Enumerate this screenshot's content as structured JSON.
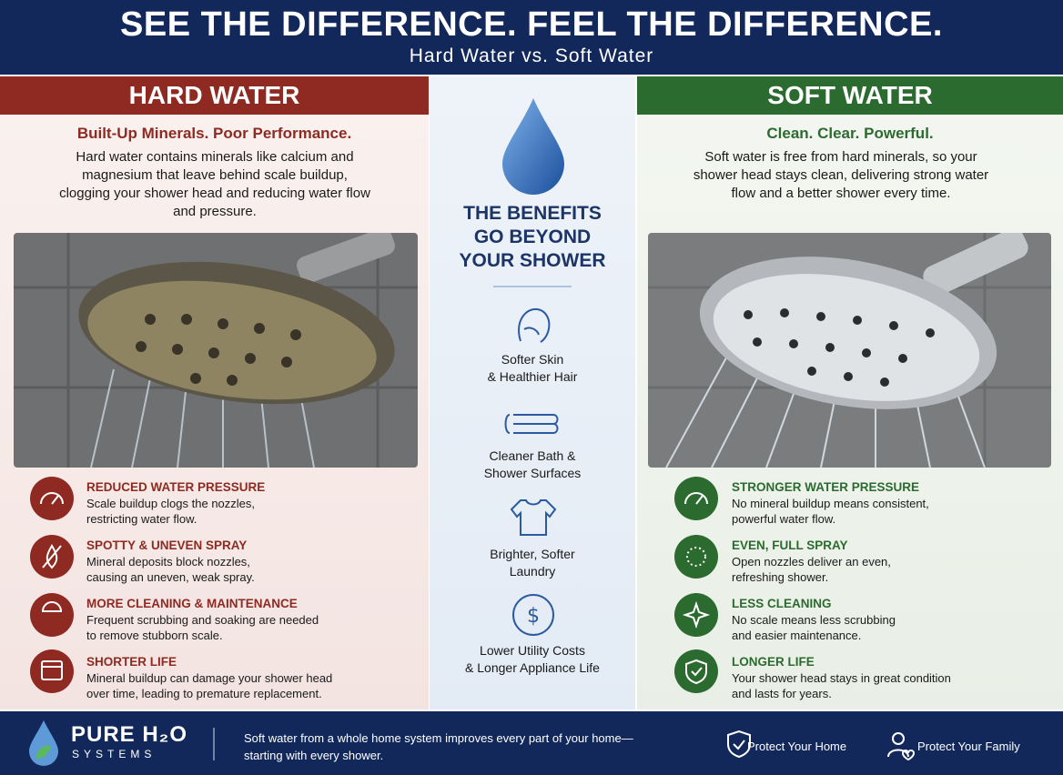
{
  "header": {
    "title": "SEE THE DIFFERENCE. FEEL THE DIFFERENCE.",
    "subtitle": "Hard Water vs. Soft Water"
  },
  "hard_water": {
    "heading": "HARD WATER",
    "tagline": "Built-Up Minerals. Poor Performance.",
    "description": "Hard water contains minerals like calcium and magnesium that leave behind scale buildup, clogging your shower head and reducing water flow and pressure.",
    "items": [
      {
        "title": "REDUCED WATER PRESSURE",
        "text": "Scale buildup clogs the nozzles,\nrestricting water flow."
      },
      {
        "title": "SPOTTY & UNEVEN SPRAY",
        "text": "Mineral deposits block nozzles,\ncausing an uneven, weak spray."
      },
      {
        "title": "MORE CLEANING & MAINTENANCE",
        "text": "Frequent scrubbing and soaking are needed\nto remove stubborn scale."
      },
      {
        "title": "SHORTER LIFE",
        "text": "Mineral buildup can damage your shower head\nover time, leading to premature replacement."
      }
    ]
  },
  "benefits": {
    "heading": "THE BENEFITS\nGO BEYOND\nYOUR SHOWER",
    "items": [
      "Softer Skin\n& Healthier Hair",
      "Cleaner Bath &\nShower Surfaces",
      "Brighter, Softer\nLaundry",
      "Lower Utility Costs\n& Longer Appliance Life"
    ]
  },
  "soft_water": {
    "heading": "SOFT WATER",
    "tagline": "Clean. Clear. Powerful.",
    "description": "Soft water is free from hard minerals, so your shower head stays clean, delivering strong water flow and a better shower every time.",
    "items": [
      {
        "title": "STRONGER WATER PRESSURE",
        "text": "No mineral buildup means consistent,\npowerful water flow."
      },
      {
        "title": "EVEN, FULL SPRAY",
        "text": "Open nozzles deliver an even,\nrefreshing shower."
      },
      {
        "title": "LESS CLEANING",
        "text": "No scale means less scrubbing\nand easier maintenance."
      },
      {
        "title": "LONGER LIFE",
        "text": "Your shower head stays in great condition\nand lasts for years."
      }
    ]
  },
  "footer": {
    "brand": "PURE H₂O",
    "brand_sub": "SYSTEMS",
    "message": "Soft water from a whole home system improves every part of your home—\nstarting with every shower.",
    "badges": [
      "Protect Your Home",
      "Protect Your Family"
    ]
  }
}
